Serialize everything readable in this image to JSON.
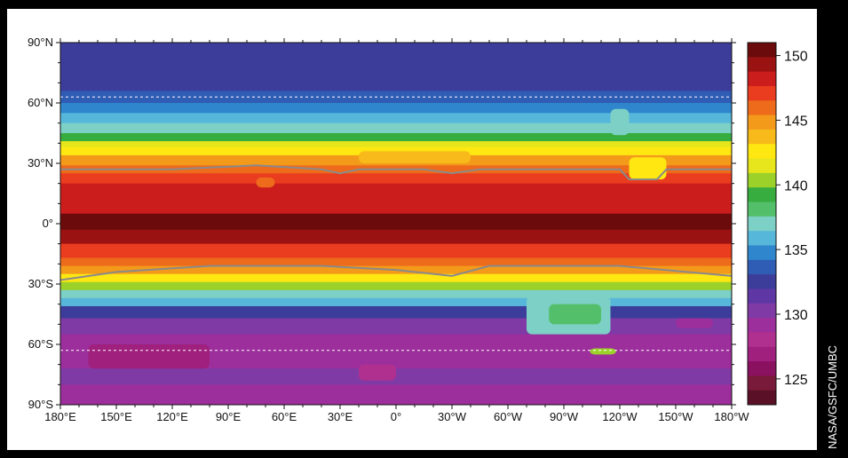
{
  "credit": "NASA/GSFC/UMBC",
  "map": {
    "latitudes": [
      {
        "value": 90,
        "label": "90°N"
      },
      {
        "value": 60,
        "label": "60°N"
      },
      {
        "value": 30,
        "label": "30°N"
      },
      {
        "value": 0,
        "label": "0°"
      },
      {
        "value": -30,
        "label": "30°S"
      },
      {
        "value": -60,
        "label": "60°S"
      },
      {
        "value": -90,
        "label": "90°S"
      }
    ],
    "longitudes": [
      {
        "value": 180,
        "label": "180°E"
      },
      {
        "value": 150,
        "label": "150°E"
      },
      {
        "value": 120,
        "label": "120°E"
      },
      {
        "value": 90,
        "label": "90°E"
      },
      {
        "value": 60,
        "label": "60°E"
      },
      {
        "value": 30,
        "label": "30°E"
      },
      {
        "value": 0,
        "label": "0°"
      },
      {
        "value": -30,
        "label": "30°W"
      },
      {
        "value": -60,
        "label": "60°W"
      },
      {
        "value": -90,
        "label": "90°W"
      },
      {
        "value": -120,
        "label": "120°W"
      },
      {
        "value": -150,
        "label": "150°W"
      },
      {
        "value": -180,
        "label": "180°W"
      }
    ],
    "dashed_latitudes": [
      63,
      -63
    ],
    "colorbar": {
      "min": 123,
      "max": 151,
      "tick_labels": [
        {
          "value": 150,
          "label": "150"
        },
        {
          "value": 145,
          "label": "145"
        },
        {
          "value": 140,
          "label": "140"
        },
        {
          "value": 135,
          "label": "135"
        },
        {
          "value": 130,
          "label": "130"
        },
        {
          "value": 125,
          "label": "125"
        }
      ],
      "colors": [
        "#5a1026",
        "#7a1a3a",
        "#8a1060",
        "#a0207e",
        "#b0308f",
        "#9c2f9c",
        "#7f3aa6",
        "#5e37a5",
        "#3c3d9a",
        "#2f5cb4",
        "#2f86cc",
        "#56b7da",
        "#7dd0c6",
        "#53bf6a",
        "#37ac3f",
        "#9cd12a",
        "#e7e51b",
        "#ffe712",
        "#f8ba1a",
        "#f39a1a",
        "#ee6b1c",
        "#ea3c1f",
        "#cc1d1d",
        "#9b1212",
        "#6b0b0b"
      ]
    },
    "bands": [
      {
        "lat_top": 90,
        "lat_bottom": 66,
        "value": 133
      },
      {
        "lat_top": 66,
        "lat_bottom": 60,
        "value": 134
      },
      {
        "lat_top": 60,
        "lat_bottom": 55,
        "value": 135
      },
      {
        "lat_top": 55,
        "lat_bottom": 50,
        "value": 136
      },
      {
        "lat_top": 50,
        "lat_bottom": 45,
        "value": 137.5
      },
      {
        "lat_top": 45,
        "lat_bottom": 41,
        "value": 139
      },
      {
        "lat_top": 41,
        "lat_bottom": 38,
        "value": 141
      },
      {
        "lat_top": 38,
        "lat_bottom": 34,
        "value": 143
      },
      {
        "lat_top": 34,
        "lat_bottom": 29,
        "value": 145
      },
      {
        "lat_top": 29,
        "lat_bottom": 25,
        "value": 146
      },
      {
        "lat_top": 25,
        "lat_bottom": 20,
        "value": 147
      },
      {
        "lat_top": 20,
        "lat_bottom": 5,
        "value": 148.5
      },
      {
        "lat_top": 5,
        "lat_bottom": -3,
        "value": 150.5
      },
      {
        "lat_top": -3,
        "lat_bottom": -10,
        "value": 149
      },
      {
        "lat_top": -10,
        "lat_bottom": -17,
        "value": 147.5
      },
      {
        "lat_top": -17,
        "lat_bottom": -21,
        "value": 146
      },
      {
        "lat_top": -21,
        "lat_bottom": -25,
        "value": 144.5
      },
      {
        "lat_top": -25,
        "lat_bottom": -29,
        "value": 143
      },
      {
        "lat_top": -29,
        "lat_bottom": -33,
        "value": 140.5
      },
      {
        "lat_top": -33,
        "lat_bottom": -37,
        "value": 137.5
      },
      {
        "lat_top": -37,
        "lat_bottom": -41,
        "value": 135.5
      },
      {
        "lat_top": -41,
        "lat_bottom": -47,
        "value": 133
      },
      {
        "lat_top": -47,
        "lat_bottom": -55,
        "value": 130.5
      },
      {
        "lat_top": -55,
        "lat_bottom": -72,
        "value": 129
      },
      {
        "lat_top": -72,
        "lat_bottom": -80,
        "value": 130
      },
      {
        "lat_top": -80,
        "lat_bottom": -90,
        "value": 129.5
      }
    ],
    "patches": [
      {
        "lon_west": -70,
        "lon_east": -115,
        "lat_top": -36,
        "lat_bottom": -55,
        "value": 136.5
      },
      {
        "lon_west": -82,
        "lon_east": -110,
        "lat_top": -40,
        "lat_bottom": -50,
        "value": 138.5
      },
      {
        "lon_west": -104,
        "lon_east": -118,
        "lat_top": -62,
        "lat_bottom": -65,
        "value": 140
      },
      {
        "lon_west": 165,
        "lon_east": 100,
        "lat_top": -60,
        "lat_bottom": -72,
        "value": 127
      },
      {
        "lon_west": 20,
        "lon_east": 0,
        "lat_top": -70,
        "lat_bottom": -78,
        "value": 127.5
      },
      {
        "lon_west": -115,
        "lon_east": -125,
        "lat_top": 57,
        "lat_bottom": 44,
        "value": 137.5
      },
      {
        "lon_west": -125,
        "lon_east": -145,
        "lat_top": 33,
        "lat_bottom": 22,
        "value": 142.5
      },
      {
        "lon_west": 20,
        "lon_east": -40,
        "lat_top": 36,
        "lat_bottom": 30,
        "value": 144
      },
      {
        "lon_west": 75,
        "lon_east": 65,
        "lat_top": 23,
        "lat_bottom": 18,
        "value": 146.5
      },
      {
        "lon_west": -150,
        "lon_east": -170,
        "lat_top": -47,
        "lat_bottom": -52,
        "value": 129
      }
    ],
    "contours": [
      [
        [
          180,
          27
        ],
        [
          120,
          27
        ],
        [
          75,
          29
        ],
        [
          40,
          27
        ],
        [
          30,
          25
        ],
        [
          20,
          27
        ],
        [
          -15,
          27
        ],
        [
          -30,
          25
        ],
        [
          -45,
          27
        ],
        [
          -120,
          27
        ],
        [
          -125,
          22
        ],
        [
          -140,
          22
        ],
        [
          -145,
          27
        ],
        [
          -180,
          27
        ]
      ],
      [
        [
          180,
          -28
        ],
        [
          150,
          -24
        ],
        [
          100,
          -21
        ],
        [
          40,
          -21
        ],
        [
          0,
          -23
        ],
        [
          -30,
          -26
        ],
        [
          -50,
          -21
        ],
        [
          -120,
          -21
        ],
        [
          -180,
          -26
        ]
      ]
    ]
  }
}
